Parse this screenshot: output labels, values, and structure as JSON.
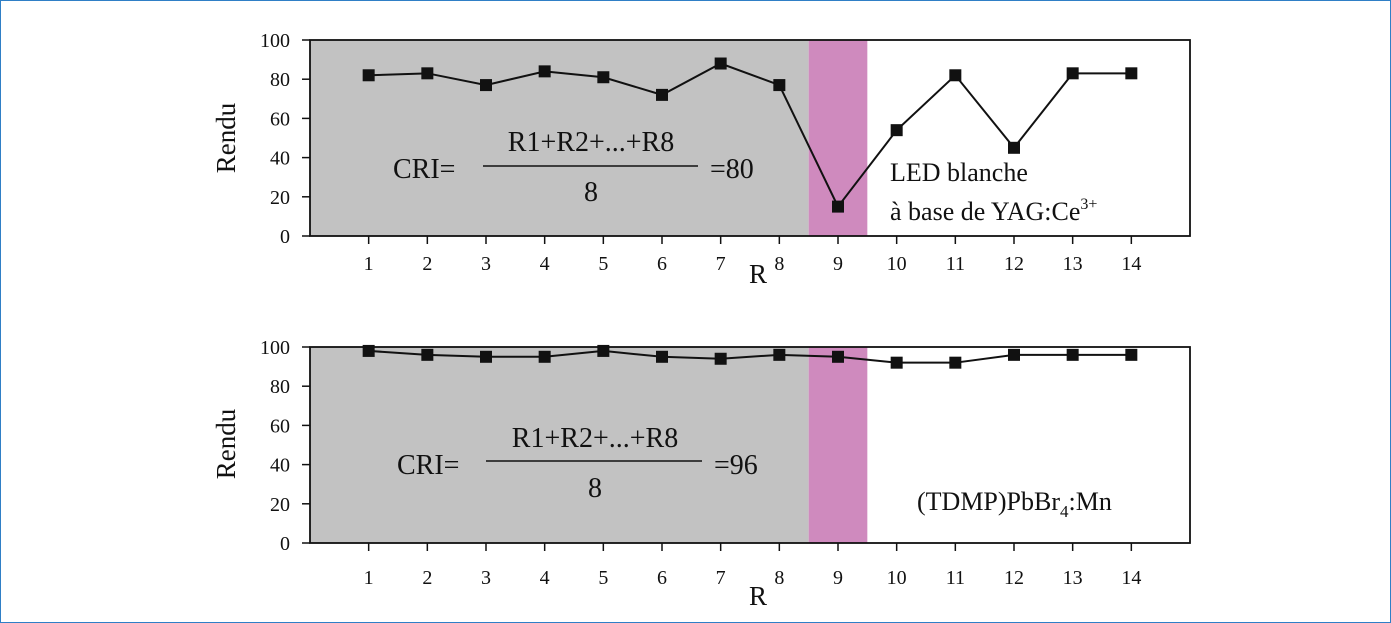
{
  "chart_data": [
    {
      "type": "line",
      "x": [
        1,
        2,
        3,
        4,
        5,
        6,
        7,
        8,
        9,
        10,
        11,
        12,
        13,
        14
      ],
      "series": [
        {
          "values": [
            82,
            83,
            77,
            84,
            81,
            72,
            88,
            77,
            15,
            54,
            82,
            45,
            83,
            83
          ]
        }
      ],
      "xlabel": "R",
      "ylabel": "Rendu",
      "xlim": [
        0,
        15
      ],
      "ylim": [
        0,
        100
      ],
      "xticks": [
        "1",
        "2",
        "3",
        "4",
        "5",
        "6",
        "7",
        "8",
        "9",
        "10",
        "11",
        "12",
        "13",
        "14"
      ],
      "yticks": [
        "0",
        "20",
        "40",
        "60",
        "80",
        "100"
      ],
      "shaded_regions": [
        {
          "from": 0,
          "to": 8.5,
          "color": "#c2c2c2"
        },
        {
          "from": 8.5,
          "to": 9.5,
          "color": "#cf8abe"
        }
      ],
      "formula": {
        "lhs": "CRI=",
        "numerator": "R1+R2+...+R8",
        "denominator": "8",
        "rhs": "=80"
      },
      "annotation": {
        "line1": "LED blanche",
        "line2": "à base de YAG:Ce",
        "line2_sup": "3+"
      }
    },
    {
      "type": "line",
      "x": [
        1,
        2,
        3,
        4,
        5,
        6,
        7,
        8,
        9,
        10,
        11,
        12,
        13,
        14
      ],
      "series": [
        {
          "values": [
            98,
            96,
            95,
            95,
            98,
            95,
            94,
            96,
            95,
            92,
            92,
            96,
            96,
            96
          ]
        }
      ],
      "xlabel": "R",
      "ylabel": "Rendu",
      "xlim": [
        0,
        15
      ],
      "ylim": [
        0,
        100
      ],
      "xticks": [
        "1",
        "2",
        "3",
        "4",
        "5",
        "6",
        "7",
        "8",
        "9",
        "10",
        "11",
        "12",
        "13",
        "14"
      ],
      "yticks": [
        "0",
        "20",
        "40",
        "60",
        "80",
        "100"
      ],
      "shaded_regions": [
        {
          "from": 0,
          "to": 8.5,
          "color": "#c2c2c2"
        },
        {
          "from": 8.5,
          "to": 9.5,
          "color": "#cf8abe"
        }
      ],
      "formula": {
        "lhs": "CRI=",
        "numerator": "R1+R2+...+R8",
        "denominator": "8",
        "rhs": "=96"
      },
      "annotation": {
        "pre": "(TDMP)PbBr",
        "sub": "4",
        "post": ":Mn"
      }
    }
  ]
}
